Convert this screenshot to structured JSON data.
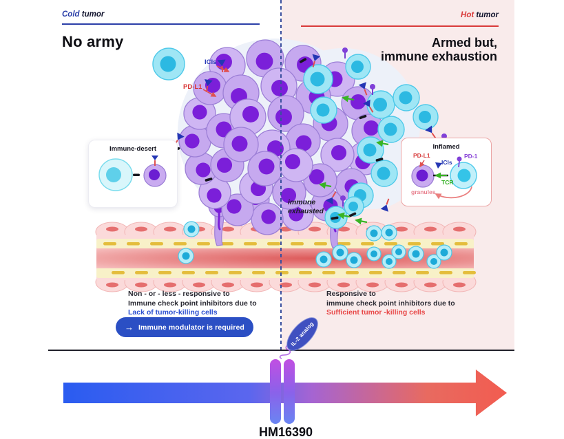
{
  "cold_panel": {
    "label_accent": "Cold",
    "label_rest": " tumor",
    "headline": "No army",
    "note_line1": "Non - or - less - responsive to",
    "note_line2": "Immune check point inhibitors due to",
    "note_line3": "Lack of tumor-killing cells",
    "cta_label": "Immune modulator is required",
    "immune_desert_title": "Immune-desert"
  },
  "hot_panel": {
    "label_accent": "Hot",
    "label_rest": " tumor",
    "headline_accent": "Armed",
    "headline_rest": " but,",
    "headline_line2": "immune exhaustion",
    "exhausted_line1": "immune",
    "exhausted_line2": "exhausted",
    "note_line1": "Responsive to",
    "note_line2": "immune check point inhibitors due to",
    "note_line3": "Sufficient tumor -killing cells",
    "inflamed": {
      "title": "Inflamed",
      "label_pdl1": "PD-L1",
      "label_icis": "ICIs",
      "label_pd1": "PD-1",
      "label_tcr": "TCR",
      "label_granules": "granules"
    }
  },
  "tumor_labels": {
    "icis": "ICIs",
    "pdl1": "PD-L1"
  },
  "axis": {
    "il2_badge": "IL-2 analog",
    "drug_name": "HM16390"
  },
  "icons": {
    "cta_arrow": "→"
  },
  "colors": {
    "cold_accent": "#2b3fa8",
    "hot_accent": "#d93a3a",
    "pink_panel": "#f9ebeb",
    "cta_blue": "#2b4fc4",
    "link_blue": "#2b4fd0",
    "alert_red": "#e84848",
    "il2_badge_bg": "#4050c0",
    "arrow_gradient_start": "#2a5cf0",
    "arrow_gradient_end": "#f25c50",
    "tumor_cell_body": "#c6a9ef",
    "tumor_cell_nucleus": "#7b1fd9",
    "immune_cell_body": "#9fe6f5",
    "immune_cell_nucleus": "#2cb9e2"
  }
}
